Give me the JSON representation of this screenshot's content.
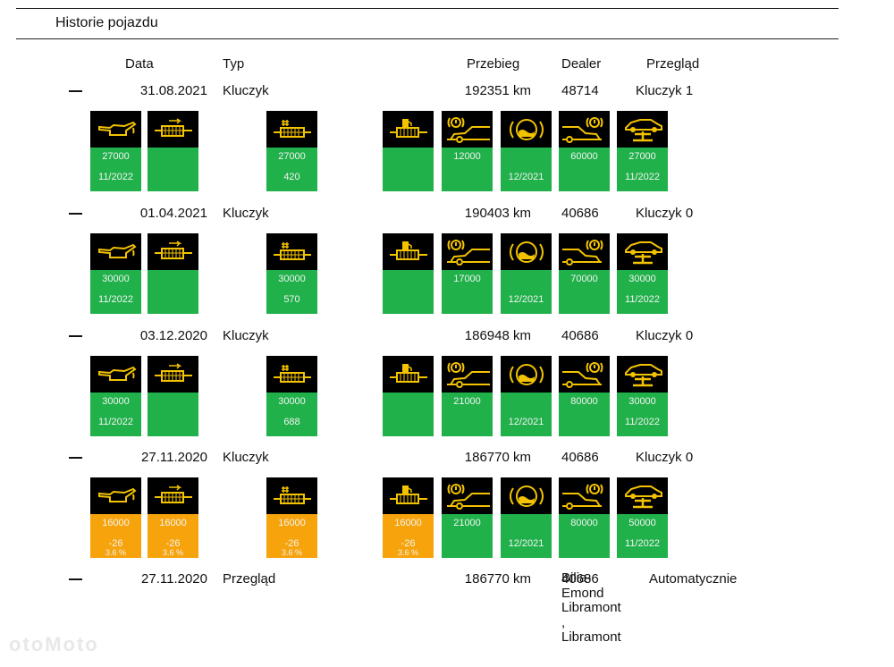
{
  "section_title": "Historie pojazdu",
  "headers": {
    "date": "Data",
    "type": "Typ",
    "mileage": "Przebieg",
    "dealer": "Dealer",
    "inspection": "Przegląd"
  },
  "colors": {
    "green": "#21b14a",
    "orange": "#f7a40c",
    "icon_bg": "#000000",
    "icon_fg": "#f3c300"
  },
  "entries": [
    {
      "date": "31.08.2021",
      "type": "Kluczyk",
      "mileage": "192351 km",
      "dealer": "48714",
      "inspection": "Kluczyk 1",
      "tiles": [
        {
          "icon": "oil-can-icon",
          "status": "green",
          "l1": "27000",
          "l2": "11/2022",
          "l3": ""
        },
        {
          "icon": "particle-filter-icon",
          "status": "green",
          "l1": "",
          "l2": "",
          "l3": ""
        },
        {
          "icon": "exhaust-filter-icon",
          "status": "green",
          "l1": "27000",
          "l2": "420",
          "l3": ""
        },
        {
          "icon": "fuel-filter-icon",
          "status": "green",
          "l1": "",
          "l2": "",
          "l3": ""
        },
        {
          "icon": "brake-warning-car-icon",
          "status": "green",
          "l1": "12000",
          "l2": "",
          "l3": ""
        },
        {
          "icon": "brake-fluid-icon",
          "status": "green",
          "l1": "",
          "l2": "12/2021",
          "l3": ""
        },
        {
          "icon": "rear-brake-icon",
          "status": "green",
          "l1": "60000",
          "l2": "",
          "l3": ""
        },
        {
          "icon": "car-lift-icon",
          "status": "green",
          "l1": "27000",
          "l2": "11/2022",
          "l3": ""
        }
      ]
    },
    {
      "date": "01.04.2021",
      "type": "Kluczyk",
      "mileage": "190403 km",
      "dealer": "40686",
      "inspection": "Kluczyk 0",
      "tiles": [
        {
          "icon": "oil-can-icon",
          "status": "green",
          "l1": "30000",
          "l2": "11/2022",
          "l3": ""
        },
        {
          "icon": "particle-filter-icon",
          "status": "green",
          "l1": "",
          "l2": "",
          "l3": ""
        },
        {
          "icon": "exhaust-filter-icon",
          "status": "green",
          "l1": "30000",
          "l2": "570",
          "l3": ""
        },
        {
          "icon": "fuel-filter-icon",
          "status": "green",
          "l1": "",
          "l2": "",
          "l3": ""
        },
        {
          "icon": "brake-warning-car-icon",
          "status": "green",
          "l1": "17000",
          "l2": "",
          "l3": ""
        },
        {
          "icon": "brake-fluid-icon",
          "status": "green",
          "l1": "",
          "l2": "12/2021",
          "l3": ""
        },
        {
          "icon": "rear-brake-icon",
          "status": "green",
          "l1": "70000",
          "l2": "",
          "l3": ""
        },
        {
          "icon": "car-lift-icon",
          "status": "green",
          "l1": "30000",
          "l2": "11/2022",
          "l3": ""
        }
      ]
    },
    {
      "date": "03.12.2020",
      "type": "Kluczyk",
      "mileage": "186948 km",
      "dealer": "40686",
      "inspection": "Kluczyk 0",
      "tiles": [
        {
          "icon": "oil-can-icon",
          "status": "green",
          "l1": "30000",
          "l2": "11/2022",
          "l3": ""
        },
        {
          "icon": "particle-filter-icon",
          "status": "green",
          "l1": "",
          "l2": "",
          "l3": ""
        },
        {
          "icon": "exhaust-filter-icon",
          "status": "green",
          "l1": "30000",
          "l2": "688",
          "l3": ""
        },
        {
          "icon": "fuel-filter-icon",
          "status": "green",
          "l1": "",
          "l2": "",
          "l3": ""
        },
        {
          "icon": "brake-warning-car-icon",
          "status": "green",
          "l1": "21000",
          "l2": "",
          "l3": ""
        },
        {
          "icon": "brake-fluid-icon",
          "status": "green",
          "l1": "",
          "l2": "12/2021",
          "l3": ""
        },
        {
          "icon": "rear-brake-icon",
          "status": "green",
          "l1": "80000",
          "l2": "",
          "l3": ""
        },
        {
          "icon": "car-lift-icon",
          "status": "green",
          "l1": "30000",
          "l2": "11/2022",
          "l3": ""
        }
      ]
    },
    {
      "date": "27.11.2020",
      "type": "Kluczyk",
      "mileage": "186770 km",
      "dealer": "40686",
      "inspection": "Kluczyk 0",
      "tiles": [
        {
          "icon": "oil-can-icon",
          "status": "orange",
          "l1": "16000",
          "l2": "-26",
          "l3": "3.6 %"
        },
        {
          "icon": "particle-filter-icon",
          "status": "orange",
          "l1": "16000",
          "l2": "-26",
          "l3": "3.6 %"
        },
        {
          "icon": "exhaust-filter-icon",
          "status": "orange",
          "l1": "16000",
          "l2": "-26",
          "l3": "3.6 %"
        },
        {
          "icon": "fuel-filter-icon",
          "status": "orange",
          "l1": "16000",
          "l2": "-26",
          "l3": "3.6 %"
        },
        {
          "icon": "brake-warning-car-icon",
          "status": "green",
          "l1": "21000",
          "l2": "",
          "l3": ""
        },
        {
          "icon": "brake-fluid-icon",
          "status": "green",
          "l1": "",
          "l2": "12/2021",
          "l3": ""
        },
        {
          "icon": "rear-brake-icon",
          "status": "green",
          "l1": "80000",
          "l2": "",
          "l3": ""
        },
        {
          "icon": "car-lift-icon",
          "status": "green",
          "l1": "50000",
          "l2": "11/2022",
          "l3": ""
        }
      ]
    },
    {
      "date": "27.11.2020",
      "type": "Przegląd",
      "mileage": "186770 km",
      "dealer": "40686",
      "dealer_lines": [
        "Bilia-",
        "Emond",
        "Libramont",
        ",",
        "Libramont"
      ],
      "inspection": "Automatycznie",
      "tiles": []
    }
  ],
  "watermark": "otoMoto"
}
